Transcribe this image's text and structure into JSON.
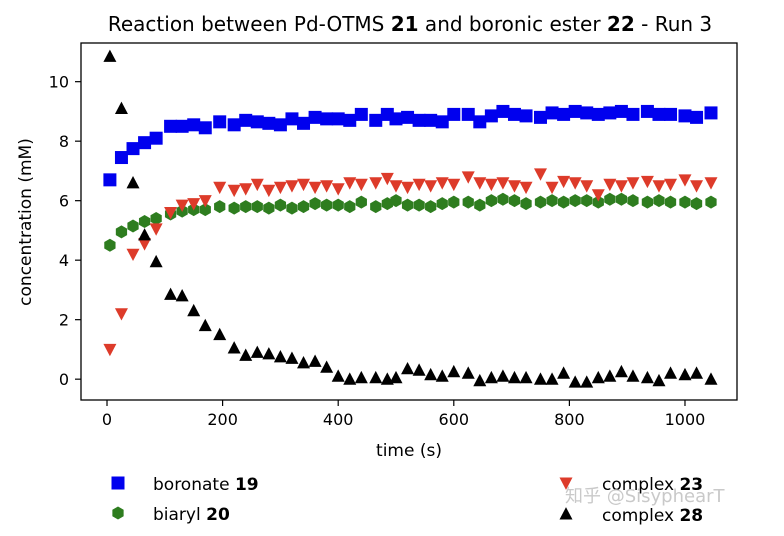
{
  "chart_data": {
    "type": "scatter",
    "title": {
      "prefix": "Reaction between Pd-OTMS ",
      "bold1": "21",
      "middle": " and boronic ester ",
      "bold2": "22",
      "suffix": " - Run 3"
    },
    "xlabel": "time (s)",
    "ylabel": "concentration (mM)",
    "xlim": [
      -45,
      1090
    ],
    "ylim": [
      -0.7,
      11.3
    ],
    "xticks": [
      0,
      200,
      400,
      600,
      800,
      1000
    ],
    "yticks": [
      0,
      2,
      4,
      6,
      8,
      10
    ],
    "grid": false,
    "legend_position": "bottom",
    "x": [
      5,
      25,
      45,
      65,
      85,
      110,
      130,
      150,
      170,
      195,
      220,
      240,
      260,
      280,
      300,
      320,
      340,
      360,
      380,
      400,
      420,
      440,
      465,
      485,
      500,
      520,
      540,
      560,
      580,
      600,
      625,
      645,
      665,
      685,
      705,
      725,
      750,
      770,
      790,
      810,
      830,
      850,
      870,
      890,
      910,
      935,
      955,
      975,
      1000,
      1020,
      1045
    ],
    "series": [
      {
        "name": "boronate",
        "bold": "19",
        "marker": "square",
        "color": "#0000ee",
        "values": [
          6.7,
          7.45,
          7.75,
          7.95,
          8.1,
          8.5,
          8.5,
          8.55,
          8.45,
          8.65,
          8.55,
          8.7,
          8.65,
          8.6,
          8.55,
          8.75,
          8.6,
          8.8,
          8.75,
          8.75,
          8.7,
          8.9,
          8.7,
          8.9,
          8.75,
          8.8,
          8.7,
          8.7,
          8.65,
          8.9,
          8.9,
          8.65,
          8.85,
          9.0,
          8.9,
          8.85,
          8.8,
          8.95,
          8.9,
          9.0,
          8.95,
          8.9,
          8.95,
          9.0,
          8.9,
          9.0,
          8.9,
          8.9,
          8.85,
          8.8,
          8.95
        ]
      },
      {
        "name": "biaryl",
        "bold": "20",
        "marker": "hexagon",
        "color": "#2e7d1f",
        "values": [
          4.5,
          4.95,
          5.15,
          5.3,
          5.4,
          5.55,
          5.65,
          5.7,
          5.7,
          5.8,
          5.75,
          5.8,
          5.8,
          5.75,
          5.85,
          5.75,
          5.8,
          5.9,
          5.85,
          5.85,
          5.8,
          5.95,
          5.8,
          5.9,
          6.0,
          5.85,
          5.85,
          5.8,
          5.9,
          5.95,
          5.95,
          5.85,
          6.0,
          6.05,
          6.0,
          5.9,
          5.95,
          6.0,
          5.95,
          6.0,
          6.0,
          5.95,
          6.05,
          6.05,
          6.0,
          5.95,
          6.0,
          5.95,
          5.95,
          5.9,
          5.95
        ]
      },
      {
        "name": "complex",
        "bold": "23",
        "marker": "triangle-down",
        "color": "#dd3b2a",
        "values": [
          1.0,
          2.2,
          4.2,
          4.55,
          5.05,
          5.6,
          5.85,
          5.9,
          6.0,
          6.45,
          6.35,
          6.4,
          6.55,
          6.35,
          6.45,
          6.5,
          6.55,
          6.45,
          6.5,
          6.4,
          6.6,
          6.55,
          6.6,
          6.75,
          6.5,
          6.45,
          6.55,
          6.5,
          6.6,
          6.55,
          6.8,
          6.6,
          6.55,
          6.6,
          6.5,
          6.45,
          6.9,
          6.45,
          6.65,
          6.6,
          6.5,
          6.2,
          6.55,
          6.5,
          6.6,
          6.65,
          6.5,
          6.55,
          6.7,
          6.5,
          6.6
        ]
      },
      {
        "name": "complex",
        "bold": "28",
        "marker": "triangle-up",
        "color": "#000000",
        "values": [
          10.85,
          9.1,
          6.6,
          4.85,
          3.95,
          2.85,
          2.8,
          2.3,
          1.8,
          1.5,
          1.05,
          0.8,
          0.9,
          0.85,
          0.75,
          0.7,
          0.55,
          0.6,
          0.4,
          0.1,
          0.0,
          0.05,
          0.05,
          0.0,
          0.05,
          0.35,
          0.3,
          0.15,
          0.1,
          0.25,
          0.2,
          -0.05,
          0.05,
          0.1,
          0.05,
          0.05,
          0.0,
          0.0,
          0.2,
          -0.1,
          -0.1,
          0.05,
          0.1,
          0.25,
          0.1,
          0.05,
          -0.05,
          0.2,
          0.15,
          0.2,
          0.0
        ]
      }
    ]
  },
  "watermark": "知乎 @SisyphearT"
}
